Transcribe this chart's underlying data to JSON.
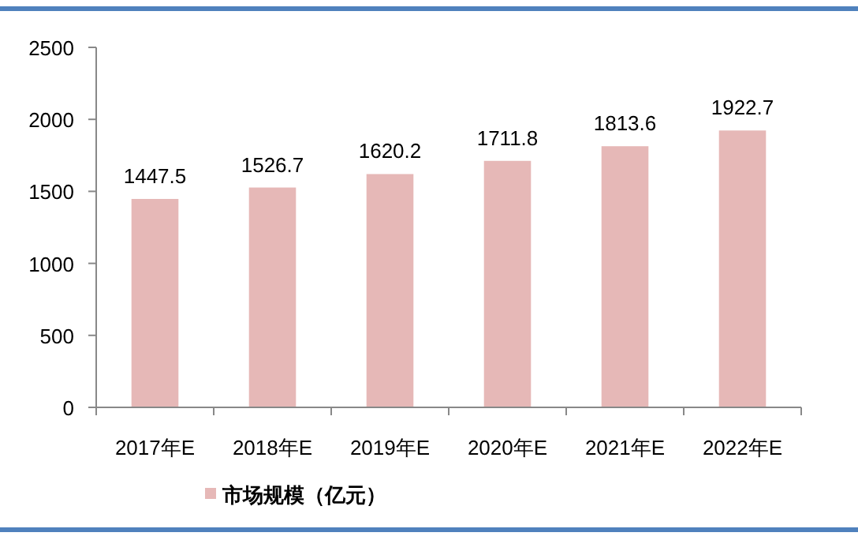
{
  "chart_data": {
    "type": "bar",
    "categories": [
      "2017年E",
      "2018年E",
      "2019年E",
      "2020年E",
      "2021年E",
      "2022年E"
    ],
    "series": [
      {
        "name": "市场规模（亿元）",
        "color": "#e6b8b7",
        "values": [
          1447.5,
          1526.7,
          1620.2,
          1711.8,
          1813.6,
          1922.7
        ]
      }
    ],
    "ylim": [
      0,
      2500
    ],
    "yticks": [
      0,
      500,
      1000,
      1500,
      2000,
      2500
    ],
    "data_labels": true,
    "legend": "bottom left",
    "grid": false
  }
}
